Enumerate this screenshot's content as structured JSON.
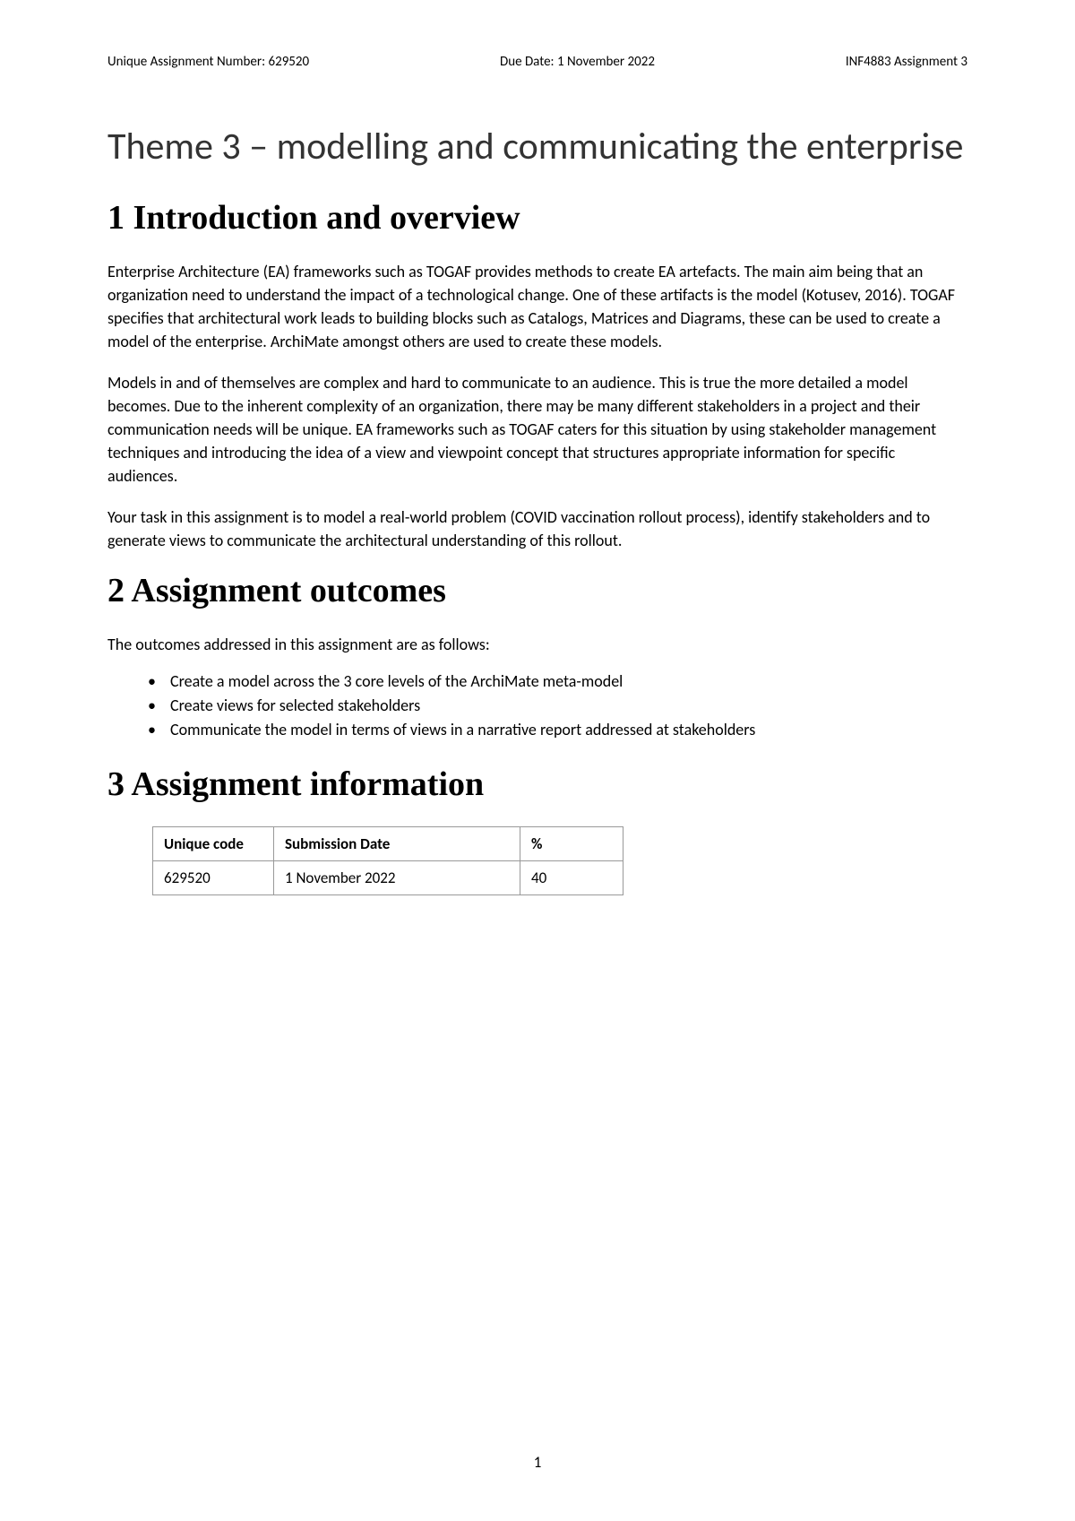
{
  "header": {
    "left": "Unique Assignment Number: 629520",
    "center": "Due Date: 1 November 2022",
    "right": "INF4883 Assignment 3"
  },
  "title": "Theme 3 – modelling and communicating the enterprise",
  "section1": {
    "heading": "1  Introduction and overview",
    "para1": "Enterprise Architecture (EA) frameworks such as TOGAF provides methods to create EA artefacts. The main aim being that an organization need to understand the impact of a technological change. One of these artifacts is the model (Kotusev, 2016). TOGAF specifies that architectural work leads to building blocks such as Catalogs, Matrices and Diagrams, these can be used to create a model of the enterprise. ArchiMate amongst others are used to create these models.",
    "para2": "Models in and of themselves are complex and hard to communicate to an audience. This is true the more detailed a model becomes. Due to the inherent complexity of an organization, there may be many different stakeholders in a project and their communication needs will be unique. EA frameworks such as TOGAF caters for this situation by using stakeholder management techniques and introducing the idea of a view and viewpoint concept that structures appropriate information for specific audiences.",
    "para3": "Your task in this assignment is to model a real-world problem (COVID vaccination rollout process), identify stakeholders and to generate views to communicate the architectural understanding of this rollout."
  },
  "section2": {
    "heading": "2  Assignment outcomes",
    "intro": "The outcomes addressed in this assignment are as follows:",
    "bullets": [
      "Create a model across the 3 core levels of the ArchiMate meta-model",
      "Create views for selected stakeholders",
      "Communicate the model in terms of views in a narrative report addressed at stakeholders"
    ]
  },
  "section3": {
    "heading": "3  Assignment information",
    "table": {
      "columns": [
        "Unique code",
        "Submission Date",
        "%"
      ],
      "rows": [
        [
          "629520",
          "1 November 2022",
          "40"
        ]
      ]
    }
  },
  "pageNumber": "1"
}
